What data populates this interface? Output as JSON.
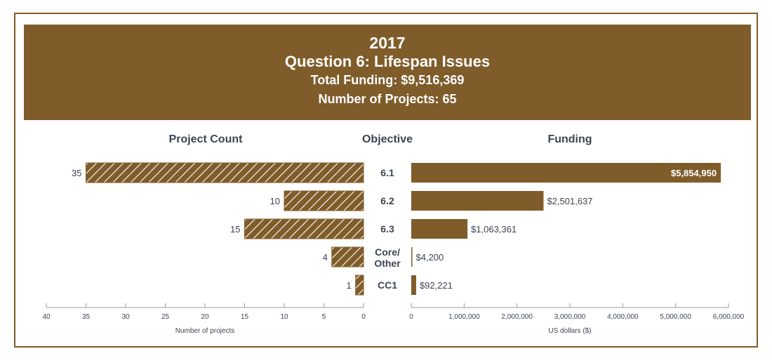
{
  "header": {
    "year": "2017",
    "title": "Question 6: Lifespan Issues",
    "total_funding": "Total Funding: $9,516,369",
    "num_projects": "Number of Projects: 65"
  },
  "columns": {
    "left": "Project Count",
    "middle": "Objective",
    "right": "Funding"
  },
  "colors": {
    "brand": "#7f5c2a",
    "text": "#3d4452",
    "axis": "#9a9a9a"
  },
  "chart_data": [
    {
      "type": "bar",
      "orientation": "horizontal",
      "direction": "right-to-left",
      "title": "Project Count",
      "categories": [
        "6.1",
        "6.2",
        "6.3",
        "Core/ Other",
        "CC1"
      ],
      "values": [
        35,
        10,
        15,
        4,
        1
      ],
      "value_labels": [
        "35",
        "10",
        "15",
        "4",
        "1"
      ],
      "xlabel": "Number of projects",
      "xlim": [
        0,
        40
      ],
      "xticks": [
        40,
        35,
        30,
        25,
        20,
        15,
        10,
        5,
        0
      ],
      "fill": "hatched",
      "grid": false
    },
    {
      "type": "bar",
      "orientation": "horizontal",
      "title": "Funding",
      "categories": [
        "6.1",
        "6.2",
        "6.3",
        "Core/ Other",
        "CC1"
      ],
      "values": [
        5854950,
        2501637,
        1063361,
        4200,
        92221
      ],
      "value_labels": [
        "$5,854,950",
        "$2,501,637",
        "$1,063,361",
        "$4,200",
        "$92,221"
      ],
      "xlabel": "US dollars ($)",
      "xlim": [
        0,
        6000000
      ],
      "xticks": [
        "0",
        "1,000,000",
        "2,000,000",
        "3,000,000",
        "4,000,000",
        "5,000,000",
        "6,000,000"
      ],
      "fill": "solid",
      "grid": false
    }
  ],
  "objective_labels": [
    [
      "6.1"
    ],
    [
      "6.2"
    ],
    [
      "6.3"
    ],
    [
      "Core/",
      "Other"
    ],
    [
      "CC1"
    ]
  ]
}
